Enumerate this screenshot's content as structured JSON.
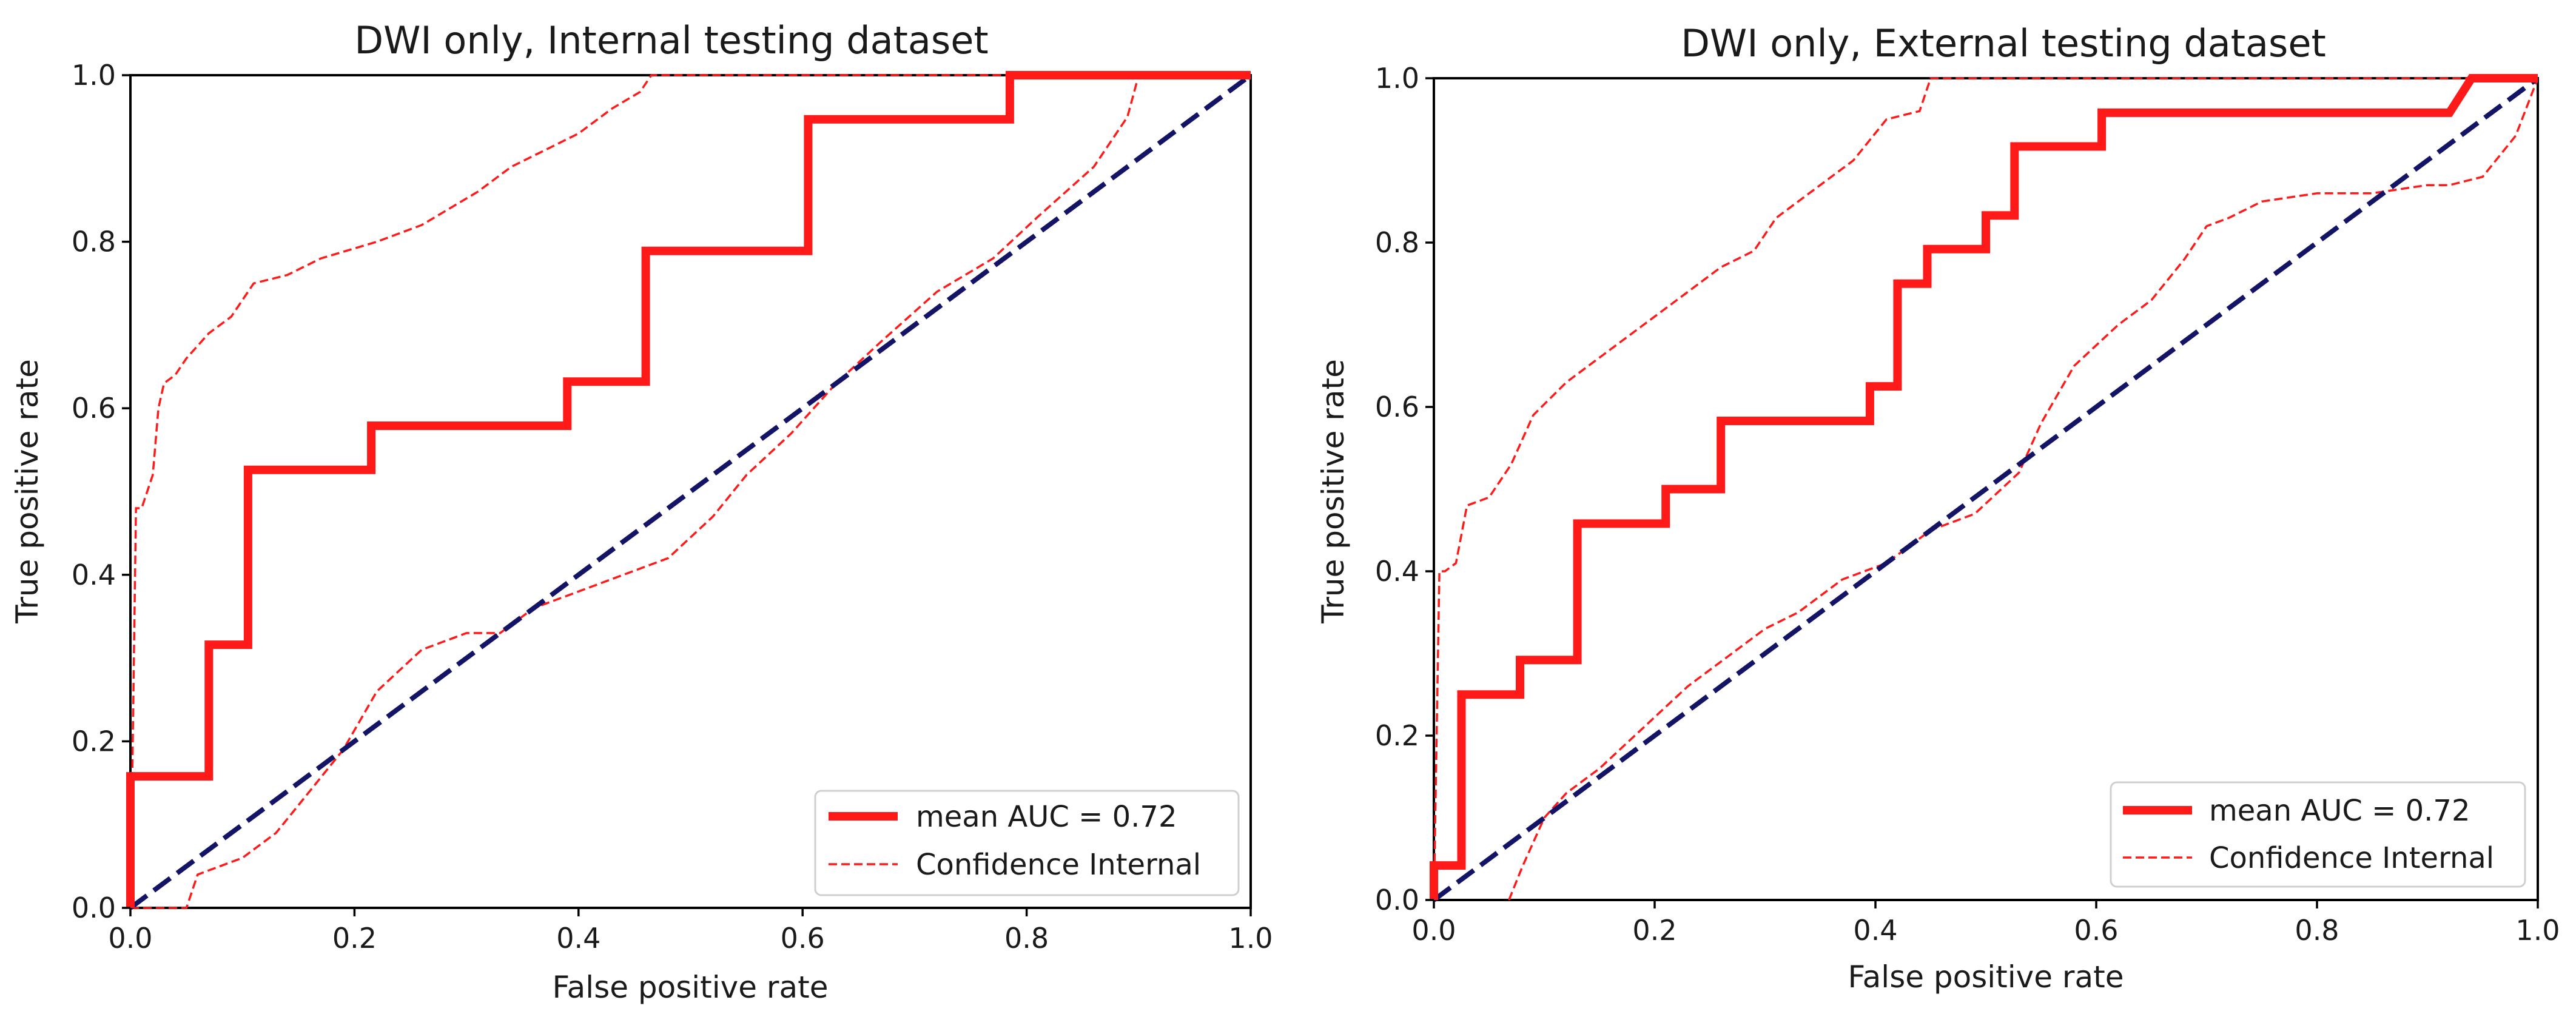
{
  "chart_data": [
    {
      "type": "line",
      "title": "DWI only, Internal testing dataset",
      "xlabel": "False positive rate",
      "ylabel": "True positive rate",
      "xlim": [
        0,
        1
      ],
      "ylim": [
        0,
        1
      ],
      "xticks": [
        "0.0",
        "0.2",
        "0.4",
        "0.6",
        "0.8",
        "1.0"
      ],
      "yticks": [
        "0.0",
        "0.2",
        "0.4",
        "0.6",
        "0.8",
        "1.0"
      ],
      "grid": false,
      "legend_position": "bottom-right",
      "legend": [
        "mean AUC = 0.72",
        "Confidence Internal"
      ],
      "series": [
        {
          "name": "mean AUC = 0.72",
          "style": "solid-thick",
          "color": "#ff1a1a",
          "x": [
            0,
            0,
            0.07,
            0.07,
            0.105,
            0.105,
            0.215,
            0.215,
            0.39,
            0.39,
            0.46,
            0.46,
            0.605,
            0.605,
            0.785,
            0.785,
            1.0
          ],
          "y": [
            0,
            0.158,
            0.158,
            0.316,
            0.316,
            0.526,
            0.526,
            0.579,
            0.579,
            0.632,
            0.632,
            0.789,
            0.789,
            0.947,
            0.947,
            1.0,
            1.0
          ]
        },
        {
          "name": "Confidence Internal (upper)",
          "style": "dashed",
          "color": "#ff1a1a",
          "x": [
            0,
            0.005,
            0.01,
            0.02,
            0.025,
            0.03,
            0.04,
            0.05,
            0.07,
            0.09,
            0.11,
            0.14,
            0.17,
            0.22,
            0.26,
            0.31,
            0.34,
            0.37,
            0.4,
            0.43,
            0.455,
            0.46,
            0.465,
            0.5,
            0.6,
            0.8,
            0.9,
            1.0
          ],
          "y": [
            0,
            0.48,
            0.48,
            0.52,
            0.6,
            0.63,
            0.64,
            0.66,
            0.69,
            0.71,
            0.75,
            0.76,
            0.78,
            0.8,
            0.82,
            0.86,
            0.89,
            0.91,
            0.93,
            0.96,
            0.98,
            0.99,
            1.0,
            1.0,
            1.0,
            1.0,
            1.0,
            1.0
          ]
        },
        {
          "name": "Confidence Internal (lower)",
          "style": "dashed",
          "color": "#ff1a1a",
          "x": [
            0,
            0.05,
            0.06,
            0.08,
            0.1,
            0.13,
            0.16,
            0.19,
            0.22,
            0.26,
            0.3,
            0.33,
            0.36,
            0.4,
            0.44,
            0.48,
            0.52,
            0.55,
            0.59,
            0.63,
            0.67,
            0.72,
            0.77,
            0.81,
            0.86,
            0.89,
            0.9,
            1.0
          ],
          "y": [
            0,
            0,
            0.04,
            0.05,
            0.06,
            0.09,
            0.14,
            0.19,
            0.26,
            0.31,
            0.33,
            0.33,
            0.36,
            0.38,
            0.4,
            0.42,
            0.47,
            0.52,
            0.57,
            0.63,
            0.68,
            0.74,
            0.78,
            0.83,
            0.89,
            0.95,
            1.0,
            1.0
          ]
        },
        {
          "name": "Chance diagonal",
          "style": "dashed-thick",
          "color": "#141466",
          "x": [
            0,
            1
          ],
          "y": [
            0,
            1
          ]
        }
      ]
    },
    {
      "type": "line",
      "title": "DWI only, External testing dataset",
      "xlabel": "False positive rate",
      "ylabel": "True positive rate",
      "xlim": [
        0,
        1
      ],
      "ylim": [
        0,
        1
      ],
      "xticks": [
        "0.0",
        "0.2",
        "0.4",
        "0.6",
        "0.8",
        "1.0"
      ],
      "yticks": [
        "0.0",
        "0.2",
        "0.4",
        "0.6",
        "0.8",
        "1.0"
      ],
      "grid": false,
      "legend_position": "bottom-right",
      "legend": [
        "mean AUC = 0.72",
        "Confidence Internal"
      ],
      "series": [
        {
          "name": "mean AUC = 0.72",
          "style": "solid-thick",
          "color": "#ff1a1a",
          "x": [
            0,
            0,
            0.025,
            0.025,
            0.078,
            0.078,
            0.13,
            0.13,
            0.21,
            0.21,
            0.26,
            0.26,
            0.395,
            0.395,
            0.42,
            0.42,
            0.447,
            0.447,
            0.5,
            0.5,
            0.526,
            0.526,
            0.605,
            0.605,
            0.92,
            0.94,
            0.94,
            1.0
          ],
          "y": [
            0,
            0.042,
            0.042,
            0.25,
            0.25,
            0.292,
            0.292,
            0.458,
            0.458,
            0.5,
            0.5,
            0.583,
            0.583,
            0.625,
            0.625,
            0.75,
            0.75,
            0.792,
            0.792,
            0.833,
            0.833,
            0.917,
            0.917,
            0.958,
            0.958,
            1.0,
            1.0,
            1.0
          ]
        },
        {
          "name": "Confidence Internal (upper)",
          "style": "dashed",
          "color": "#ff1a1a",
          "x": [
            0,
            0.005,
            0.01,
            0.02,
            0.03,
            0.05,
            0.07,
            0.09,
            0.12,
            0.16,
            0.19,
            0.22,
            0.26,
            0.29,
            0.31,
            0.34,
            0.38,
            0.41,
            0.44,
            0.445,
            0.45,
            0.55,
            0.8,
            0.95,
            1.0
          ],
          "y": [
            0,
            0.4,
            0.4,
            0.41,
            0.48,
            0.49,
            0.53,
            0.59,
            0.63,
            0.67,
            0.7,
            0.73,
            0.77,
            0.79,
            0.83,
            0.86,
            0.9,
            0.95,
            0.96,
            0.98,
            1.0,
            1.0,
            1.0,
            1.0,
            1.0
          ]
        },
        {
          "name": "Confidence Internal (lower)",
          "style": "dashed",
          "color": "#ff1a1a",
          "x": [
            0.068,
            0.08,
            0.1,
            0.12,
            0.15,
            0.19,
            0.23,
            0.27,
            0.3,
            0.33,
            0.37,
            0.41,
            0.45,
            0.49,
            0.53,
            0.55,
            0.58,
            0.62,
            0.65,
            0.68,
            0.7,
            0.72,
            0.75,
            0.8,
            0.85,
            0.9,
            0.92,
            0.95,
            0.98,
            1.0
          ],
          "y": [
            0,
            0.04,
            0.1,
            0.13,
            0.16,
            0.21,
            0.26,
            0.3,
            0.33,
            0.35,
            0.39,
            0.41,
            0.45,
            0.47,
            0.52,
            0.58,
            0.65,
            0.7,
            0.73,
            0.78,
            0.82,
            0.83,
            0.85,
            0.86,
            0.86,
            0.87,
            0.87,
            0.88,
            0.93,
            1.0
          ]
        },
        {
          "name": "Chance diagonal",
          "style": "dashed-thick",
          "color": "#141466",
          "x": [
            0,
            1
          ],
          "y": [
            0,
            1
          ]
        }
      ]
    }
  ]
}
